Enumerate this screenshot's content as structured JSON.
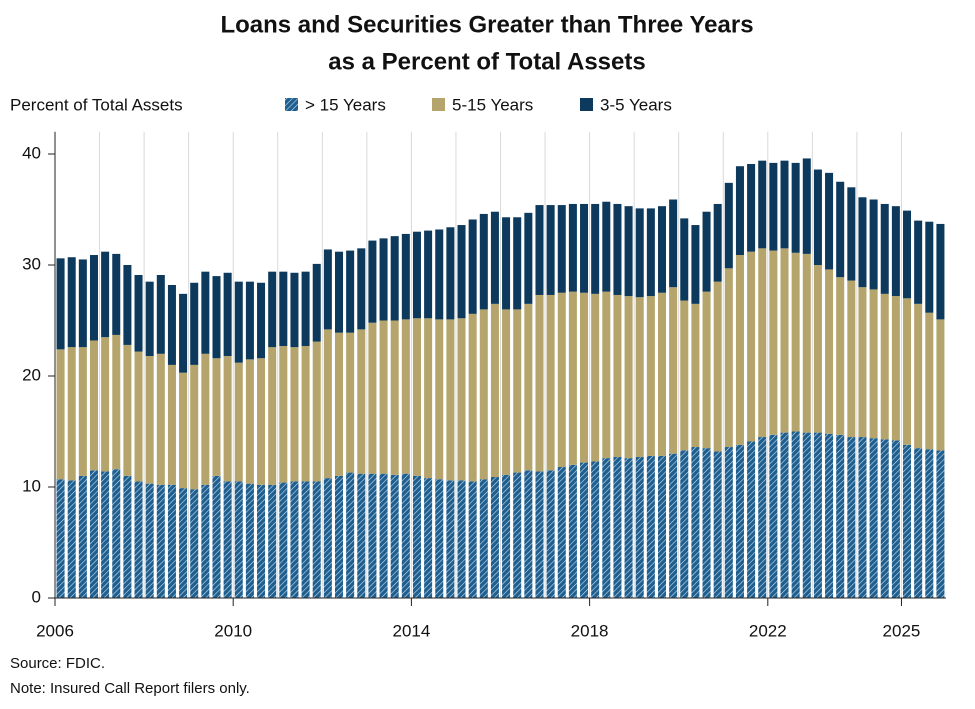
{
  "chart_data": {
    "type": "stacked_bar",
    "title": [
      "Loans and Securities Greater than Three Years",
      "as a Percent of Total Assets"
    ],
    "ylabel": "Percent of Total Assets",
    "notes": [
      "Source: FDIC.",
      "Note: Insured Call Report filers only."
    ],
    "x": [
      2006.125,
      2006.375,
      2006.625,
      2006.875,
      2007.125,
      2007.375,
      2007.625,
      2007.875,
      2008.125,
      2008.375,
      2008.625,
      2008.875,
      2009.125,
      2009.375,
      2009.625,
      2009.875,
      2010.125,
      2010.375,
      2010.625,
      2010.875,
      2011.125,
      2011.375,
      2011.625,
      2011.875,
      2012.125,
      2012.375,
      2012.625,
      2012.875,
      2013.125,
      2013.375,
      2013.625,
      2013.875,
      2014.125,
      2014.375,
      2014.625,
      2014.875,
      2015.125,
      2015.375,
      2015.625,
      2015.875,
      2016.125,
      2016.375,
      2016.625,
      2016.875,
      2017.125,
      2017.375,
      2017.625,
      2017.875,
      2018.125,
      2018.375,
      2018.625,
      2018.875,
      2019.125,
      2019.375,
      2019.625,
      2019.875,
      2020.125,
      2020.375,
      2020.625,
      2020.875,
      2021.125,
      2021.375,
      2021.625,
      2021.875,
      2022.125,
      2022.375,
      2022.625,
      2022.875,
      2023.125,
      2023.375,
      2023.625,
      2023.875,
      2024.125,
      2024.375,
      2024.625,
      2024.875,
      2025.125,
      2025.375,
      2025.625,
      2025.875
    ],
    "series": [
      {
        "name": "> 15 Years",
        "color": "#1f5f8f",
        "hatch": true,
        "values": [
          10.7,
          10.6,
          11.0,
          11.5,
          11.4,
          11.6,
          11.0,
          10.5,
          10.3,
          10.2,
          10.2,
          9.9,
          9.8,
          10.2,
          11.0,
          10.5,
          10.5,
          10.3,
          10.2,
          10.2,
          10.4,
          10.5,
          10.5,
          10.5,
          10.8,
          11.0,
          11.3,
          11.2,
          11.2,
          11.2,
          11.1,
          11.2,
          11.0,
          10.8,
          10.7,
          10.6,
          10.6,
          10.5,
          10.7,
          10.9,
          11.1,
          11.3,
          11.5,
          11.4,
          11.5,
          11.8,
          12.0,
          12.2,
          12.3,
          12.6,
          12.7,
          12.6,
          12.7,
          12.8,
          12.8,
          13.0,
          13.3,
          13.6,
          13.5,
          13.2,
          13.6,
          13.8,
          14.1,
          14.5,
          14.7,
          14.9,
          15.0,
          14.9,
          14.9,
          14.8,
          14.7,
          14.5,
          14.5,
          14.4,
          14.3,
          14.2,
          13.8,
          13.5,
          13.4,
          13.3
        ]
      },
      {
        "name": "5-15 Years",
        "color": "#b5a56c",
        "values": [
          11.7,
          12.0,
          11.6,
          11.7,
          12.1,
          12.1,
          11.8,
          11.7,
          11.5,
          11.8,
          10.8,
          10.4,
          11.2,
          11.8,
          10.6,
          11.3,
          10.7,
          11.2,
          11.4,
          12.4,
          12.3,
          12.1,
          12.2,
          12.6,
          13.4,
          12.9,
          12.6,
          13.0,
          13.6,
          13.8,
          13.9,
          13.9,
          14.2,
          14.4,
          14.4,
          14.5,
          14.6,
          15.1,
          15.3,
          15.6,
          14.9,
          14.7,
          15.0,
          15.9,
          15.8,
          15.7,
          15.6,
          15.3,
          15.1,
          15.0,
          14.6,
          14.6,
          14.4,
          14.4,
          14.7,
          15.0,
          13.5,
          12.9,
          14.1,
          15.3,
          16.1,
          17.1,
          17.1,
          17.0,
          16.6,
          16.6,
          16.1,
          16.1,
          15.1,
          14.8,
          14.2,
          14.1,
          13.5,
          13.4,
          13.1,
          13.0,
          13.2,
          13.0,
          12.3,
          11.8
        ]
      },
      {
        "name": "3-5 Years",
        "color": "#0d3a5c",
        "values": [
          8.2,
          8.1,
          7.9,
          7.7,
          7.7,
          7.3,
          7.2,
          6.9,
          6.7,
          7.1,
          7.2,
          7.1,
          7.4,
          7.4,
          7.4,
          7.5,
          7.3,
          7.0,
          6.8,
          6.8,
          6.7,
          6.7,
          6.7,
          7.0,
          7.2,
          7.3,
          7.4,
          7.3,
          7.4,
          7.4,
          7.6,
          7.7,
          7.8,
          7.9,
          8.1,
          8.3,
          8.4,
          8.5,
          8.6,
          8.3,
          8.3,
          8.3,
          8.2,
          8.1,
          8.1,
          7.9,
          7.9,
          8.0,
          8.1,
          8.1,
          8.2,
          8.1,
          8.0,
          7.9,
          7.8,
          7.9,
          7.4,
          7.1,
          7.2,
          7.0,
          7.7,
          8.0,
          7.9,
          7.9,
          7.9,
          7.9,
          8.1,
          8.6,
          8.6,
          8.7,
          8.6,
          8.4,
          8.1,
          8.1,
          8.1,
          8.1,
          7.9,
          7.5,
          8.2,
          8.6
        ]
      }
    ],
    "xlim": [
      2006,
      2026
    ],
    "xticks": [
      2006,
      2010,
      2014,
      2018,
      2022,
      2025
    ],
    "xgrid": [
      2007,
      2008,
      2009,
      2010,
      2011,
      2012,
      2013,
      2014,
      2015,
      2016,
      2017,
      2018,
      2019,
      2020,
      2021,
      2022,
      2023,
      2024,
      2025
    ],
    "ylim": [
      0,
      42
    ],
    "yticks": [
      0,
      10,
      20,
      30,
      40
    ],
    "grid": true
  }
}
